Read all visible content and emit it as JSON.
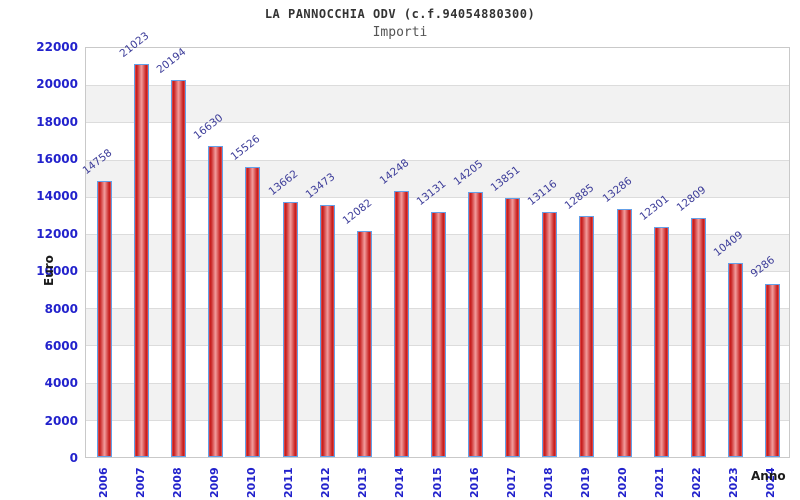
{
  "header": {
    "title": "LA PANNOCCHIA ODV (c.f.94054880300)",
    "subtitle": "Importi"
  },
  "chart_data": {
    "type": "bar",
    "title": "LA PANNOCCHIA ODV (c.f.94054880300)",
    "subtitle": "Importi",
    "xlabel": "Anno",
    "ylabel": "Euro",
    "categories": [
      "2006",
      "2007",
      "2008",
      "2009",
      "2010",
      "2011",
      "2012",
      "2013",
      "2014",
      "2015",
      "2016",
      "2017",
      "2018",
      "2019",
      "2020",
      "2021",
      "2022",
      "2023",
      "2024"
    ],
    "values": [
      14758,
      21023,
      20194,
      16630,
      15526,
      13662,
      13473,
      12082,
      14248,
      13131,
      14205,
      13851,
      13116,
      12885,
      13286,
      12301,
      12809,
      10409,
      9286
    ],
    "bar_value_labels_shown": true,
    "ylim": [
      0,
      22000
    ],
    "ytick_step": 2000,
    "grid": true,
    "legend_position": "none",
    "colors": {
      "bar_dark": "#c41616",
      "bar_light": "#f29d9d",
      "bar_mid": "#e25555",
      "bar_border": "#64a0e8",
      "band_alt": "#f2f2f2",
      "band_main": "#ffffff",
      "gridline": "#dcdcdc",
      "plot_border": "#c9c9c9",
      "tick_label": "#2222cc",
      "value_label": "#3c3c99",
      "axis_title": "#1a1a1a"
    }
  }
}
